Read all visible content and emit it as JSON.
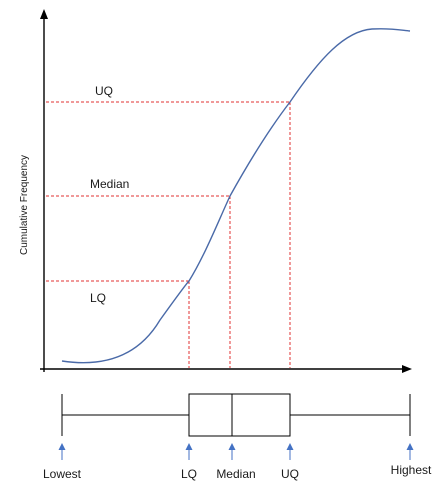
{
  "y_axis_label": "Cumulative Frequency",
  "curve_labels": {
    "uq": "UQ",
    "median": "Median",
    "lq": "LQ"
  },
  "box_labels": {
    "lowest": "Lowest",
    "lq": "LQ",
    "median": "Median",
    "uq": "UQ",
    "highest": "Highest"
  },
  "colors": {
    "curve": "#4a6aa8",
    "dashed_guides": "#e03030",
    "axes": "#000000",
    "box": "#000000",
    "markers": "#4472c4"
  },
  "icons": {
    "axis_arrowheads": "arrow-head",
    "box_markers": "up-arrow-marker"
  }
}
